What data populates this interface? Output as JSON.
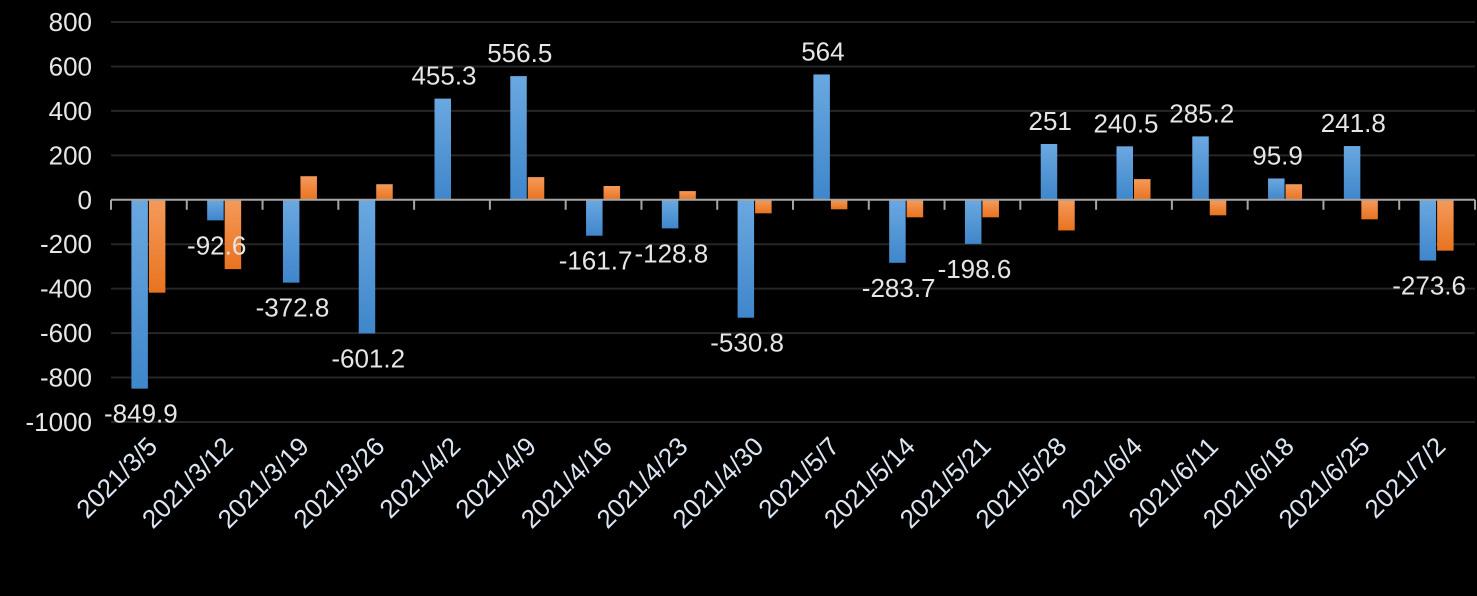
{
  "chart_data": {
    "type": "bar",
    "title": "",
    "xlabel": "",
    "ylabel": "",
    "ylim": [
      -1000,
      800
    ],
    "yticks": [
      800,
      600,
      400,
      200,
      0,
      -200,
      -400,
      -600,
      -800,
      -1000
    ],
    "grid": true,
    "legend": "none",
    "categories": [
      "2021/3/5",
      "2021/3/12",
      "2021/3/19",
      "2021/3/26",
      "2021/4/2",
      "2021/4/9",
      "2021/4/16",
      "2021/4/23",
      "2021/4/30",
      "2021/5/7",
      "2021/5/14",
      "2021/5/21",
      "2021/5/28",
      "2021/6/4",
      "2021/6/11",
      "2021/6/18",
      "2021/6/25",
      "2021/7/2"
    ],
    "series": [
      {
        "color": "#5B9BD5",
        "labeled": true,
        "values": [
          -849.9,
          -92.6,
          -372.8,
          -601.2,
          455.3,
          556.5,
          -161.7,
          -128.8,
          -530.8,
          564,
          -283.7,
          -198.6,
          251,
          240.5,
          285.2,
          95.9,
          241.8,
          -273.6
        ]
      },
      {
        "color": "#ED7D31",
        "labeled": false,
        "values": [
          -418,
          -312,
          106,
          70,
          1,
          102,
          62,
          39,
          -61,
          -43,
          -79,
          -79,
          -138,
          93,
          -70,
          70,
          -88,
          -229
        ]
      }
    ],
    "colors": {
      "background": "#000000",
      "text": "#E6E6E6",
      "axis": "#A6A6A6",
      "grid": "#262626"
    }
  }
}
